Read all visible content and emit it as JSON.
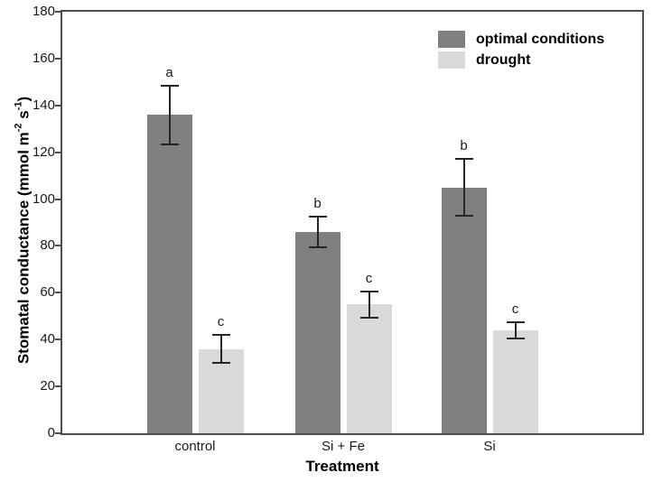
{
  "chart_data": {
    "type": "bar",
    "title": "",
    "xlabel": "Treatment",
    "ylabel": {
      "text": "Stomatal conductance (mmol m⁻² s⁻¹)",
      "prefix": "Stomatal conductance (mmol m",
      "sup1": "-2",
      "mid": " s",
      "sup2": "-1",
      "suffix": ")"
    },
    "categories": [
      "control",
      "Si + Fe",
      "Si"
    ],
    "series": [
      {
        "name": "optimal conditions",
        "color": "#808080",
        "values": [
          136,
          86,
          105
        ],
        "errors": [
          12.5,
          6.5,
          12
        ],
        "sig_letters": [
          "a",
          "b",
          "b"
        ]
      },
      {
        "name": "drought",
        "color": "#d9d9d9",
        "values": [
          36,
          55,
          44
        ],
        "errors": [
          6,
          5.5,
          3.5
        ],
        "sig_letters": [
          "c",
          "c",
          "c"
        ]
      }
    ],
    "y_axis": {
      "min": 0,
      "max": 180,
      "tick_step": 20,
      "ticks": [
        0,
        20,
        40,
        60,
        80,
        100,
        120,
        140,
        160,
        180
      ]
    },
    "x_axis": {
      "label": "Treatment"
    },
    "legend": {
      "position": "top-right-inside"
    },
    "grid": false,
    "colors": {
      "optimal_bar": "#808080",
      "drought_bar": "#d9d9d9",
      "frame": "#4d4d4d",
      "error_bars": "#262626",
      "text": "#1a1a1a",
      "background": "#ffffff"
    }
  }
}
